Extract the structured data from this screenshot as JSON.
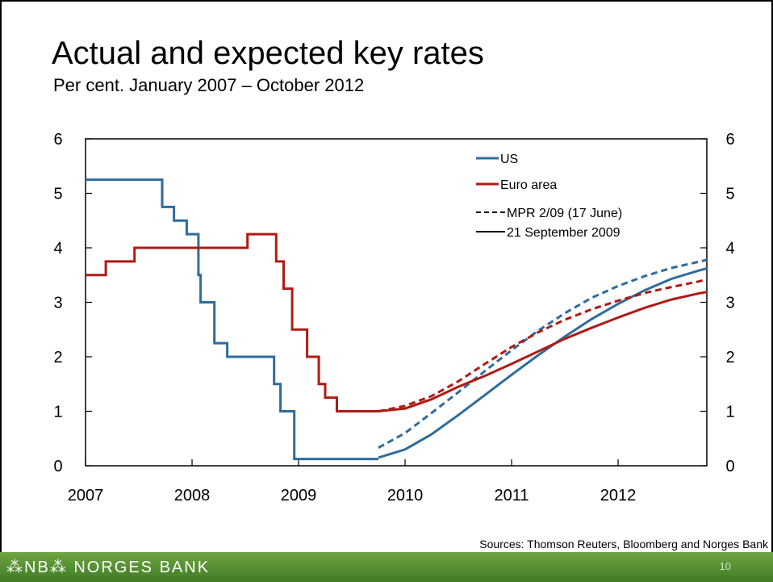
{
  "title": "Actual and expected key rates",
  "subtitle": "Per cent. January 2007 – October 2012",
  "sources": "Sources: Thomson Reuters, Bloomberg and Norges Bank",
  "footer": {
    "logo_text": "⁂NB⁂ NORGES BANK",
    "page_number": "10"
  },
  "colors": {
    "us": "#2e6c9e",
    "euro": "#b01a14",
    "footer": "#4a8a2e"
  },
  "chart_data": {
    "type": "line",
    "xlim": [
      2007.0,
      2012.833
    ],
    "ylim": [
      0,
      6
    ],
    "x_ticks": [
      "2007",
      "2008",
      "2009",
      "2010",
      "2011",
      "2012"
    ],
    "y_ticks_left": [
      "0",
      "1",
      "2",
      "3",
      "4",
      "5",
      "6"
    ],
    "y_ticks_right": [
      "0",
      "1",
      "2",
      "3",
      "4",
      "5",
      "6"
    ],
    "legend_position": "top-right",
    "legend": {
      "us": "US",
      "euro": "Euro area",
      "dashed": "MPR 2/09 (17 June)",
      "solid": "21 September 2009"
    },
    "series": [
      {
        "name": "US",
        "style": "step",
        "color": "#2e6c9e",
        "points": [
          [
            2007.0,
            5.25
          ],
          [
            2007.72,
            5.25
          ],
          [
            2007.72,
            4.75
          ],
          [
            2007.83,
            4.75
          ],
          [
            2007.83,
            4.5
          ],
          [
            2007.95,
            4.5
          ],
          [
            2007.95,
            4.25
          ],
          [
            2008.06,
            4.25
          ],
          [
            2008.06,
            3.5
          ],
          [
            2008.08,
            3.5
          ],
          [
            2008.08,
            3.0
          ],
          [
            2008.21,
            3.0
          ],
          [
            2008.21,
            2.25
          ],
          [
            2008.33,
            2.25
          ],
          [
            2008.33,
            2.0
          ],
          [
            2008.77,
            2.0
          ],
          [
            2008.77,
            1.5
          ],
          [
            2008.83,
            1.5
          ],
          [
            2008.83,
            1.0
          ],
          [
            2008.96,
            1.0
          ],
          [
            2008.96,
            0.125
          ],
          [
            2009.75,
            0.125
          ]
        ]
      },
      {
        "name": "Euro area",
        "style": "step",
        "color": "#b01a14",
        "points": [
          [
            2007.0,
            3.5
          ],
          [
            2007.19,
            3.5
          ],
          [
            2007.19,
            3.75
          ],
          [
            2007.46,
            3.75
          ],
          [
            2007.46,
            4.0
          ],
          [
            2008.52,
            4.0
          ],
          [
            2008.52,
            4.25
          ],
          [
            2008.79,
            4.25
          ],
          [
            2008.79,
            3.75
          ],
          [
            2008.86,
            3.75
          ],
          [
            2008.86,
            3.25
          ],
          [
            2008.94,
            3.25
          ],
          [
            2008.94,
            2.5
          ],
          [
            2009.08,
            2.5
          ],
          [
            2009.08,
            2.0
          ],
          [
            2009.19,
            2.0
          ],
          [
            2009.19,
            1.5
          ],
          [
            2009.25,
            1.5
          ],
          [
            2009.25,
            1.25
          ],
          [
            2009.36,
            1.25
          ],
          [
            2009.36,
            1.0
          ],
          [
            2009.75,
            1.0
          ]
        ]
      },
      {
        "name": "US MPR 2/09 (17 June)",
        "style": "dashed",
        "color": "#2e6c9e",
        "points": [
          [
            2009.75,
            0.33
          ],
          [
            2010.0,
            0.6
          ],
          [
            2010.25,
            0.97
          ],
          [
            2010.5,
            1.35
          ],
          [
            2010.75,
            1.74
          ],
          [
            2011.0,
            2.12
          ],
          [
            2011.25,
            2.48
          ],
          [
            2011.5,
            2.8
          ],
          [
            2011.75,
            3.08
          ],
          [
            2012.0,
            3.3
          ],
          [
            2012.25,
            3.48
          ],
          [
            2012.5,
            3.63
          ],
          [
            2012.75,
            3.74
          ],
          [
            2012.833,
            3.78
          ]
        ]
      },
      {
        "name": "US 21 September 2009",
        "style": "solid",
        "color": "#2e6c9e",
        "points": [
          [
            2009.75,
            0.15
          ],
          [
            2010.0,
            0.3
          ],
          [
            2010.25,
            0.58
          ],
          [
            2010.5,
            0.93
          ],
          [
            2010.75,
            1.3
          ],
          [
            2011.0,
            1.67
          ],
          [
            2011.25,
            2.03
          ],
          [
            2011.5,
            2.37
          ],
          [
            2011.75,
            2.69
          ],
          [
            2012.0,
            2.97
          ],
          [
            2012.25,
            3.22
          ],
          [
            2012.5,
            3.43
          ],
          [
            2012.75,
            3.58
          ],
          [
            2012.833,
            3.62
          ]
        ]
      },
      {
        "name": "Euro area MPR 2/09 (17 June)",
        "style": "dashed",
        "color": "#b01a14",
        "points": [
          [
            2009.75,
            1.0
          ],
          [
            2010.0,
            1.1
          ],
          [
            2010.25,
            1.28
          ],
          [
            2010.5,
            1.55
          ],
          [
            2010.75,
            1.87
          ],
          [
            2011.0,
            2.18
          ],
          [
            2011.25,
            2.45
          ],
          [
            2011.5,
            2.68
          ],
          [
            2011.75,
            2.87
          ],
          [
            2012.0,
            3.03
          ],
          [
            2012.25,
            3.17
          ],
          [
            2012.5,
            3.28
          ],
          [
            2012.75,
            3.38
          ],
          [
            2012.833,
            3.42
          ]
        ]
      },
      {
        "name": "Euro area 21 September 2009",
        "style": "solid",
        "color": "#b01a14",
        "points": [
          [
            2009.75,
            1.0
          ],
          [
            2010.0,
            1.05
          ],
          [
            2010.25,
            1.22
          ],
          [
            2010.5,
            1.45
          ],
          [
            2010.75,
            1.65
          ],
          [
            2011.0,
            1.87
          ],
          [
            2011.25,
            2.1
          ],
          [
            2011.5,
            2.33
          ],
          [
            2011.75,
            2.53
          ],
          [
            2012.0,
            2.72
          ],
          [
            2012.25,
            2.9
          ],
          [
            2012.5,
            3.05
          ],
          [
            2012.75,
            3.16
          ],
          [
            2012.833,
            3.19
          ]
        ]
      }
    ]
  }
}
